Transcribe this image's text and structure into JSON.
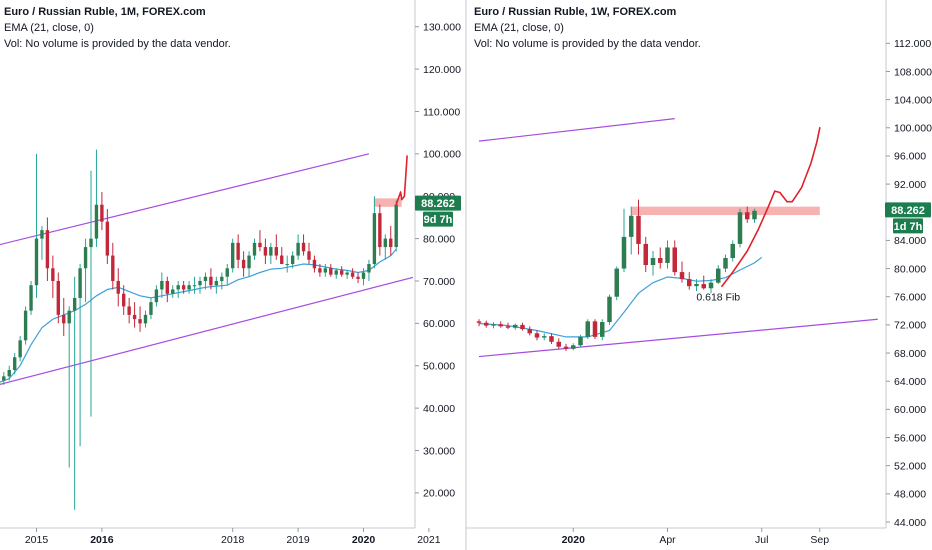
{
  "left_panel": {
    "title": "Euro / Russian Ruble, 1M, FOREX.com",
    "ema": "EMA (21, close, 0)",
    "vol": "Vol: No volume is provided by the data vendor.",
    "price_tag": "88.262",
    "countdown": "9d 7h"
  },
  "right_panel": {
    "title": "Euro / Russian Ruble, 1W, FOREX.com",
    "ema": "EMA (21, close, 0)",
    "vol": "Vol: No volume is provided by the data vendor.",
    "price_tag": "88.262",
    "countdown": "1d 7h",
    "annotation": "0.618 Fib"
  },
  "colors": {
    "up": "#26a69a",
    "up_fill": "#2e7d50",
    "down": "#c2273a",
    "ema": "#3ea0d8",
    "channel": "#a64ce0",
    "projection": "#e0202a",
    "zone": "#f4a3a3",
    "tag": "#1e7d4f"
  },
  "chart_data": [
    {
      "type": "candlestick",
      "title": "Euro / Russian Ruble, 1M, FOREX.com",
      "yticks": [
        20,
        30,
        40,
        50,
        60,
        70,
        80,
        90,
        100,
        110,
        120,
        130
      ],
      "ytick_labels": [
        "20.000",
        "30.000",
        "40.000",
        "50.000",
        "60.000",
        "70.000",
        "80.000",
        "90.000",
        "100.000",
        "110.000",
        "120.000",
        "130.000"
      ],
      "ylim": [
        13.6,
        133
      ],
      "x_labels": [
        {
          "label": "2015",
          "t": 0,
          "bold": false
        },
        {
          "label": "2016",
          "t": 12,
          "bold": true
        },
        {
          "label": "2018",
          "t": 36,
          "bold": false
        },
        {
          "label": "2019",
          "t": 48,
          "bold": false
        },
        {
          "label": "2020",
          "t": 60,
          "bold": true
        },
        {
          "label": "2021",
          "t": 72,
          "bold": false
        }
      ],
      "candles": [
        [
          -7,
          45,
          47.5,
          44.5,
          46.5
        ],
        [
          -6,
          46.5,
          48.5,
          45.5,
          47.5
        ],
        [
          -5,
          47.5,
          50,
          46.5,
          49
        ],
        [
          -4,
          49,
          53,
          48,
          52
        ],
        [
          -3,
          52,
          57,
          51,
          56
        ],
        [
          -2,
          56,
          64,
          55,
          63
        ],
        [
          -1,
          63,
          70,
          62,
          69
        ],
        [
          0,
          69,
          100,
          66,
          80
        ],
        [
          1,
          80,
          83,
          75,
          82
        ],
        [
          2,
          82,
          85,
          70,
          73
        ],
        [
          3,
          73,
          76,
          66,
          70
        ],
        [
          4,
          70,
          72,
          60,
          62
        ],
        [
          5,
          62,
          66,
          57,
          60
        ],
        [
          6,
          60,
          64,
          26,
          63
        ],
        [
          7,
          63,
          71,
          16,
          66
        ],
        [
          8,
          66,
          74,
          31,
          73
        ],
        [
          9,
          73,
          80,
          65,
          78
        ],
        [
          10,
          78,
          96,
          38,
          80
        ],
        [
          11,
          80,
          101,
          78,
          88
        ],
        [
          12,
          88,
          91,
          82,
          84
        ],
        [
          13,
          84,
          87,
          74,
          76
        ],
        [
          14,
          76,
          79,
          68,
          70
        ],
        [
          15,
          70,
          73,
          64,
          67
        ],
        [
          16,
          67,
          69,
          62,
          64
        ],
        [
          17,
          64,
          66,
          60,
          62
        ],
        [
          18,
          62,
          65,
          59,
          61
        ],
        [
          19,
          61,
          64,
          58,
          60
        ],
        [
          20,
          60,
          63,
          59,
          62
        ],
        [
          21,
          62,
          66,
          61,
          65
        ],
        [
          22,
          65,
          69,
          64,
          68
        ],
        [
          23,
          68,
          72,
          66,
          70
        ],
        [
          24,
          70,
          71,
          65,
          67
        ],
        [
          25,
          67,
          69,
          66,
          68
        ],
        [
          26,
          68,
          70,
          66,
          69
        ],
        [
          27,
          69,
          70,
          67,
          68
        ],
        [
          28,
          68,
          70,
          67,
          69
        ],
        [
          29,
          69,
          71,
          67,
          69
        ],
        [
          30,
          69,
          71,
          67,
          70
        ],
        [
          31,
          70,
          72,
          68,
          71
        ],
        [
          32,
          71,
          73,
          68,
          69
        ],
        [
          33,
          69,
          71,
          67,
          70
        ],
        [
          34,
          70,
          72,
          68,
          71
        ],
        [
          35,
          71,
          74,
          69,
          73
        ],
        [
          36,
          73,
          80,
          72,
          79
        ],
        [
          37,
          79,
          81,
          73,
          75
        ],
        [
          38,
          75,
          77,
          71,
          73
        ],
        [
          39,
          73,
          77,
          71,
          76
        ],
        [
          40,
          76,
          80,
          75,
          79
        ],
        [
          41,
          79,
          82,
          77,
          78
        ],
        [
          42,
          78,
          80,
          74,
          76
        ],
        [
          43,
          76,
          79,
          74,
          78
        ],
        [
          44,
          78,
          81,
          75,
          76
        ],
        [
          45,
          76,
          78,
          74,
          74
        ],
        [
          46,
          74,
          76,
          72,
          74
        ],
        [
          47,
          74,
          77,
          73,
          76
        ],
        [
          48,
          76,
          81,
          75,
          79
        ],
        [
          49,
          79,
          81,
          76,
          77
        ],
        [
          50,
          77,
          79,
          74,
          75
        ],
        [
          51,
          75,
          76,
          72,
          73
        ],
        [
          52,
          73,
          74,
          71,
          72
        ],
        [
          53,
          72,
          74,
          71,
          73
        ],
        [
          54,
          73,
          74,
          71,
          71.5
        ],
        [
          55,
          71.5,
          73,
          70.5,
          72.5
        ],
        [
          56,
          72.5,
          73.5,
          71,
          71.5
        ],
        [
          57,
          71.5,
          72.5,
          70.5,
          72
        ],
        [
          58,
          72,
          73,
          70.5,
          71
        ],
        [
          59,
          71,
          72,
          69.5,
          70.5
        ],
        [
          60,
          70.5,
          73,
          69,
          72
        ],
        [
          61,
          72,
          75,
          70,
          74
        ],
        [
          62,
          74,
          90,
          73,
          86
        ],
        [
          63,
          86,
          88,
          76,
          78
        ],
        [
          64,
          78,
          81,
          75,
          80
        ],
        [
          65,
          80,
          83,
          76,
          78
        ],
        [
          66,
          78,
          89,
          77,
          88
        ]
      ],
      "ema_points": [
        [
          -7,
          46
        ],
        [
          -5,
          47
        ],
        [
          -3,
          50
        ],
        [
          -1,
          55
        ],
        [
          1,
          59
        ],
        [
          3,
          61
        ],
        [
          5,
          62
        ],
        [
          7,
          63
        ],
        [
          9,
          64.5
        ],
        [
          11,
          66.5
        ],
        [
          13,
          68
        ],
        [
          15,
          68.5
        ],
        [
          17,
          67.5
        ],
        [
          19,
          66.5
        ],
        [
          21,
          66
        ],
        [
          23,
          66.5
        ],
        [
          25,
          67
        ],
        [
          27,
          67.5
        ],
        [
          29,
          68
        ],
        [
          31,
          68.5
        ],
        [
          33,
          68.8
        ],
        [
          35,
          69
        ],
        [
          37,
          70.3
        ],
        [
          39,
          71
        ],
        [
          41,
          72
        ],
        [
          43,
          72.8
        ],
        [
          45,
          73
        ],
        [
          47,
          73.5
        ],
        [
          49,
          74
        ],
        [
          51,
          73.8
        ],
        [
          53,
          73.3
        ],
        [
          55,
          72.8
        ],
        [
          57,
          72.5
        ],
        [
          59,
          72
        ],
        [
          61,
          72.5
        ],
        [
          63,
          74.5
        ],
        [
          65,
          76
        ],
        [
          66,
          77.5
        ]
      ],
      "channel_lines": [
        [
          [
            -7,
            78.5
          ],
          [
            61,
            100
          ]
        ],
        [
          [
            -7,
            45.5
          ],
          [
            77,
            73.5
          ]
        ]
      ],
      "zone": {
        "t0": 62,
        "t1": 67,
        "y0": 87.5,
        "y1": 89.5
      },
      "projection": [
        [
          66,
          88
        ],
        [
          66.8,
          91
        ],
        [
          67,
          89.2
        ],
        [
          67.5,
          90
        ],
        [
          68,
          99.5
        ]
      ],
      "last_price": 88.262
    },
    {
      "type": "candlestick",
      "title": "Euro / Russian Ruble, 1W, FOREX.com",
      "yticks": [
        44,
        48,
        52,
        56,
        60,
        64,
        68,
        72,
        76,
        80,
        84,
        88,
        92,
        96,
        100,
        104,
        108,
        112
      ],
      "ytick_labels": [
        "44.000",
        "48.000",
        "52.000",
        "56.000",
        "60.000",
        "64.000",
        "68.000",
        "72.000",
        "76.000",
        "80.000",
        "84.000",
        "88.000",
        "92.000",
        "96.000",
        "100.000",
        "104.000",
        "108.000",
        "112.000"
      ],
      "ylim": [
        44,
        114.6
      ],
      "x_labels": [
        {
          "label": "2020",
          "t": 1,
          "bold": true
        },
        {
          "label": "Apr",
          "t": 14,
          "bold": false
        },
        {
          "label": "Jul",
          "t": 27,
          "bold": false
        },
        {
          "label": "Sep",
          "t": 35,
          "bold": false
        }
      ],
      "annotation": {
        "text": "0.618 Fib",
        "t": 21,
        "y": 76
      },
      "candles": [
        [
          -12,
          72.5,
          72.8,
          71.8,
          72.3
        ],
        [
          -11,
          72.3,
          72.6,
          71.6,
          71.9
        ],
        [
          -10,
          71.9,
          72.4,
          71.5,
          72.1
        ],
        [
          -9,
          72.1,
          72.5,
          71.6,
          71.8
        ],
        [
          -8,
          71.8,
          72.3,
          71.4,
          71.6
        ],
        [
          -7,
          71.6,
          72.2,
          71.3,
          72
        ],
        [
          -6,
          72,
          72.3,
          71.2,
          71.4
        ],
        [
          -5,
          71.4,
          71.8,
          70.5,
          70.8
        ],
        [
          -4,
          70.8,
          71.2,
          69.8,
          70.2
        ],
        [
          -3,
          70.2,
          70.8,
          69.8,
          70.4
        ],
        [
          -2,
          70.4,
          70.8,
          69.3,
          69.6
        ],
        [
          -1,
          69.6,
          70.1,
          68.6,
          68.9
        ],
        [
          0,
          68.9,
          69.3,
          68.3,
          68.6
        ],
        [
          1,
          68.6,
          69.4,
          68.4,
          69.1
        ],
        [
          2,
          69.1,
          70.6,
          68.8,
          70.3
        ],
        [
          3,
          70.3,
          72.8,
          70,
          72.5
        ],
        [
          4,
          72.5,
          72.8,
          70,
          70.3
        ],
        [
          5,
          70.3,
          72.8,
          69.8,
          72.4
        ],
        [
          6,
          72.4,
          76.3,
          72,
          76
        ],
        [
          7,
          76,
          80.3,
          75.5,
          80
        ],
        [
          8,
          80,
          88.5,
          79.5,
          84.5
        ],
        [
          9,
          84.5,
          88.8,
          82,
          87.5
        ],
        [
          10,
          87.5,
          89.8,
          82,
          83.5
        ],
        [
          11,
          83.5,
          84.5,
          79.5,
          80.5
        ],
        [
          12,
          80.5,
          82.5,
          79,
          81.5
        ],
        [
          13,
          81.5,
          83,
          80,
          80.8
        ],
        [
          14,
          80.8,
          84,
          80,
          83
        ],
        [
          15,
          83,
          84,
          79,
          79.5
        ],
        [
          16,
          79.5,
          81,
          78,
          78.5
        ],
        [
          17,
          78.5,
          79.5,
          77,
          77.5
        ],
        [
          18,
          77.5,
          78.5,
          76.8,
          77.8
        ],
        [
          19,
          77.8,
          79,
          77,
          77.2
        ],
        [
          20,
          77.2,
          78.5,
          76.5,
          78
        ],
        [
          21,
          78,
          80.5,
          77.8,
          80
        ],
        [
          22,
          80,
          82,
          79.5,
          81.5
        ],
        [
          23,
          81.5,
          84,
          81,
          83.5
        ],
        [
          24,
          83.5,
          88.5,
          83,
          88
        ],
        [
          25,
          88,
          88.8,
          86.5,
          87
        ],
        [
          26,
          87,
          88.5,
          86.5,
          88.2
        ]
      ],
      "ema_points": [
        [
          -12,
          72.2
        ],
        [
          -8,
          71.9
        ],
        [
          -4,
          71.2
        ],
        [
          0,
          70.3
        ],
        [
          3,
          70.3
        ],
        [
          6,
          71.2
        ],
        [
          8,
          73.8
        ],
        [
          10,
          76.5
        ],
        [
          12,
          78
        ],
        [
          14,
          78.8
        ],
        [
          16,
          78.6
        ],
        [
          18,
          78.2
        ],
        [
          20,
          78.3
        ],
        [
          22,
          78.7
        ],
        [
          24,
          79.8
        ],
        [
          26,
          80.8
        ],
        [
          27,
          81.6
        ]
      ],
      "channel_lines": [
        [
          [
            -12,
            98.1
          ],
          [
            15,
            101.3
          ]
        ],
        [
          [
            -12,
            67.5
          ],
          [
            43,
            72.8
          ]
        ]
      ],
      "zone": {
        "t0": 9,
        "t1": 35,
        "y0": 87.6,
        "y1": 88.8
      },
      "projection": [
        [
          21.5,
          77.5
        ],
        [
          23,
          79.5
        ],
        [
          25,
          82.5
        ],
        [
          26.5,
          85.5
        ],
        [
          28,
          89
        ],
        [
          28.8,
          91
        ],
        [
          29.5,
          90.8
        ],
        [
          30.5,
          89.5
        ],
        [
          31.2,
          89.5
        ],
        [
          32.5,
          91.5
        ],
        [
          33.8,
          95
        ],
        [
          34.6,
          98
        ],
        [
          35,
          100
        ]
      ],
      "last_price": 88.262
    }
  ]
}
